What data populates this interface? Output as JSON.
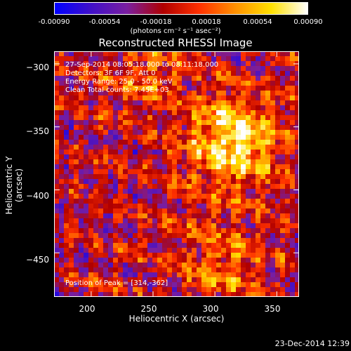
{
  "colorbar": {
    "ticks": [
      "-0.00090",
      "-0.00054",
      "-0.00018",
      "0.00018",
      "0.00054",
      "0.00090"
    ],
    "unit_label": "(photons cm⁻² s⁻¹ asec⁻²)",
    "colors": [
      "#0000ff",
      "#4010c8",
      "#7a1fa0",
      "#b00000",
      "#ff3000",
      "#ff9000",
      "#ffe000",
      "#ffffff"
    ]
  },
  "chart_data": {
    "type": "heatmap",
    "title": "Reconstructed RHESSI Image",
    "xlabel": "Heliocentric X (arcsec)",
    "ylabel": "Heliocentric Y (arcsec)",
    "xlim": [
      170,
      368
    ],
    "ylim": [
      -485,
      -290
    ],
    "x_ticks": [
      200,
      250,
      300,
      350
    ],
    "y_ticks": [
      -300,
      -350,
      -400,
      -450
    ],
    "x_tick_labels": [
      "200",
      "250",
      "300",
      "350"
    ],
    "y_tick_labels": [
      "−300",
      "−350",
      "−400",
      "−450"
    ],
    "value_range": [
      -0.0009,
      0.0009
    ],
    "peak": [
      314,
      -362
    ],
    "annotations": {
      "time_range": "27-Sep-2014 08:05:18.000 to 08:11:18.000",
      "detectors": "Detectors: 3F 6F 9F, Att 0",
      "energy": "Energy Range: 25.0 - 50.0 keV",
      "clean": "Clean     Total counts: 7.45E+03",
      "peak_text": "Position of Peak = [314,-362]"
    }
  },
  "footer": {
    "timestamp": "23-Dec-2014 12:39"
  }
}
